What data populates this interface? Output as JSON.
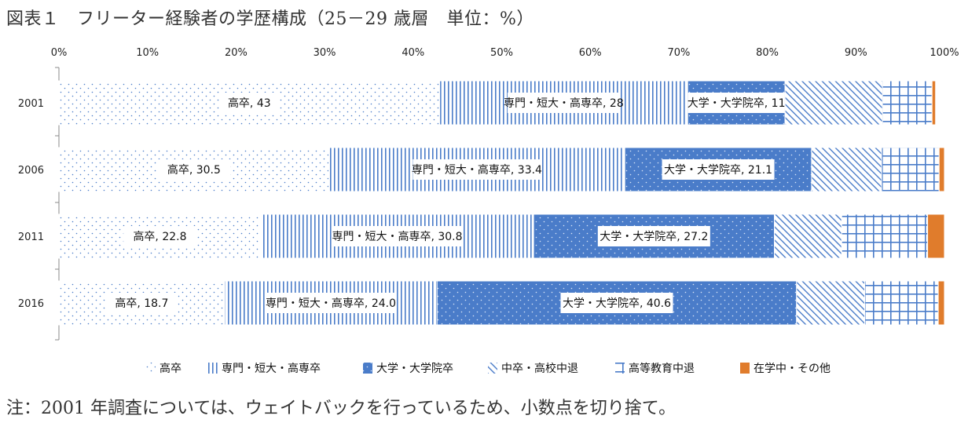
{
  "title": "図表１　フリーター経験者の学歴構成（25－29 歳層　単位：%）",
  "note": "注：2001 年調査については、ウェイトバックを行っているため、小数点を切り捨て。",
  "colors": {
    "axis": "#8a8a8a",
    "blue": "#4a7cc9",
    "blue_dark": "#3f6fbd",
    "orange": "#e07c2c"
  },
  "chart_data": {
    "type": "bar",
    "orientation": "horizontal",
    "stacked": true,
    "percent_stacked": true,
    "xlim": [
      0,
      100
    ],
    "x_ticks": [
      "0%",
      "10%",
      "20%",
      "30%",
      "40%",
      "50%",
      "60%",
      "70%",
      "80%",
      "90%",
      "100%"
    ],
    "x_tick_values": [
      0,
      10,
      20,
      30,
      40,
      50,
      60,
      70,
      80,
      90,
      100
    ],
    "categories": [
      "2001",
      "2006",
      "2011",
      "2016"
    ],
    "legend_position": "bottom",
    "series": [
      {
        "name": "高卒",
        "pattern": "dots-white",
        "values": [
          43,
          30.5,
          22.8,
          18.7
        ],
        "labels": [
          "高卒, 43",
          "高卒, 30.5",
          "高卒, 22.8",
          "高卒, 18.7"
        ]
      },
      {
        "name": "専門・短大・高専卒",
        "pattern": "vlines",
        "values": [
          28,
          33.4,
          30.8,
          24.0
        ],
        "labels": [
          "専門・短大・高専卒, 28",
          "専門・短大・高専卒, 33.4",
          "専門・短大・高専卒, 30.8",
          "専門・短大・高専卒, 24.0"
        ]
      },
      {
        "name": "大学・大学院卒",
        "pattern": "dots-blue",
        "values": [
          11,
          21.1,
          27.2,
          40.6
        ],
        "labels": [
          "大学・大学院卒, 11",
          "大学・大学院卒, 21.1",
          "大学・大学院卒, 27.2",
          "大学・大学院卒, 40.6"
        ]
      },
      {
        "name": "中卒・高校中退",
        "pattern": "diag",
        "values": [
          11,
          7.9,
          7.6,
          7.7
        ],
        "labels": [
          "",
          "",
          "",
          ""
        ]
      },
      {
        "name": "高等教育中退",
        "pattern": "grid",
        "values": [
          5.6,
          6.5,
          9.7,
          8.3
        ],
        "labels": [
          "",
          "",
          "",
          ""
        ]
      },
      {
        "name": "在学中・その他",
        "pattern": "orange",
        "values": [
          0.4,
          0.6,
          1.9,
          0.7
        ],
        "labels": [
          "",
          "",
          "",
          ""
        ]
      }
    ]
  }
}
